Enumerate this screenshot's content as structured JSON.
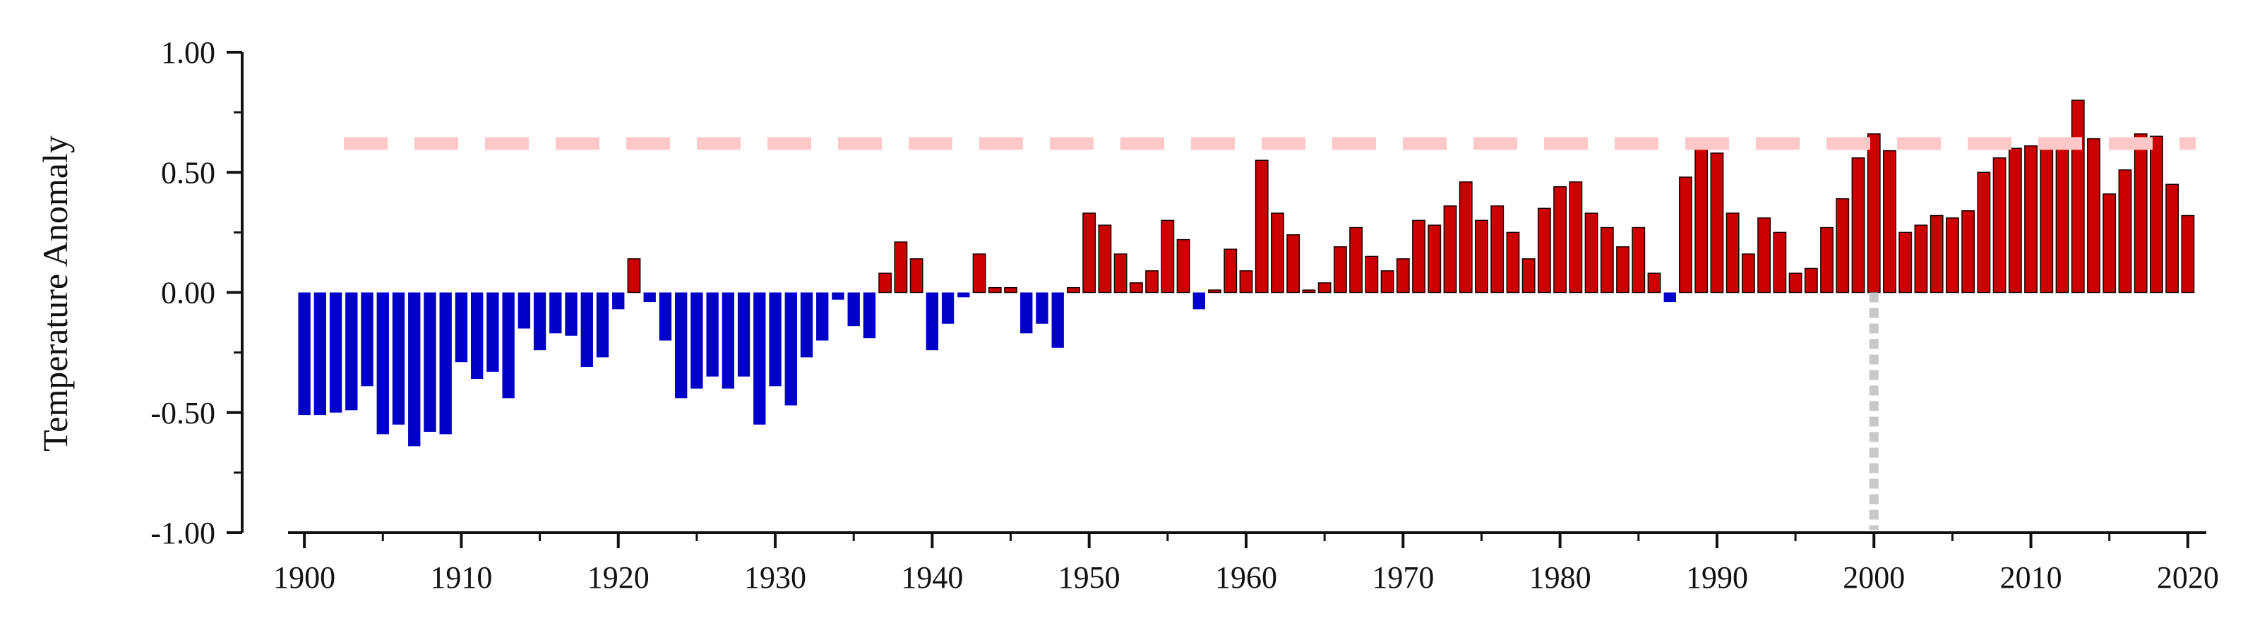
{
  "chart_data": {
    "type": "bar",
    "title": "",
    "xlabel": "",
    "ylabel": "Temperature Anomaly",
    "x_start": 1900,
    "values": [
      -0.51,
      -0.51,
      -0.5,
      -0.49,
      -0.39,
      -0.59,
      -0.55,
      -0.64,
      -0.58,
      -0.59,
      -0.29,
      -0.36,
      -0.33,
      -0.44,
      -0.15,
      -0.24,
      -0.17,
      -0.18,
      -0.31,
      -0.27,
      -0.07,
      0.14,
      -0.04,
      -0.2,
      -0.44,
      -0.4,
      -0.35,
      -0.4,
      -0.35,
      -0.55,
      -0.39,
      -0.47,
      -0.27,
      -0.2,
      -0.03,
      -0.14,
      -0.19,
      0.08,
      0.21,
      0.14,
      -0.24,
      -0.13,
      -0.02,
      0.16,
      0.02,
      0.02,
      -0.17,
      -0.13,
      -0.23,
      0.02,
      0.33,
      0.28,
      0.16,
      0.04,
      0.09,
      0.3,
      0.22,
      -0.07,
      0.01,
      0.18,
      0.09,
      0.55,
      0.33,
      0.24,
      0.01,
      0.04,
      0.19,
      0.27,
      0.15,
      0.09,
      0.14,
      0.3,
      0.28,
      0.36,
      0.46,
      0.3,
      0.36,
      0.25,
      0.14,
      0.35,
      0.44,
      0.46,
      0.33,
      0.27,
      0.19,
      0.27,
      0.08,
      -0.04,
      0.48,
      0.61,
      0.58,
      0.33,
      0.16,
      0.31,
      0.25,
      0.08,
      0.1,
      0.27,
      0.39,
      0.56,
      0.66,
      0.59,
      0.25,
      0.28,
      0.32,
      0.31,
      0.34,
      0.5,
      0.56,
      0.6,
      0.61,
      0.61,
      0.61,
      0.8,
      0.64,
      0.41,
      0.51,
      0.66,
      0.65,
      0.45,
      0.32
    ],
    "ylim": [
      -1.0,
      1.0
    ],
    "xlim": [
      1899.5,
      2020.5
    ],
    "y_ticks": [
      "1.00",
      "0.50",
      "0.00",
      "-0.50",
      "-1.00"
    ],
    "x_ticks": [
      "1900",
      "1910",
      "1920",
      "1930",
      "1940",
      "1950",
      "1960",
      "1970",
      "1980",
      "1990",
      "2000",
      "2010",
      "2020"
    ],
    "reference_line_y": 0.62,
    "reference_line_x": 2000,
    "colors": {
      "positive": "#cc0000",
      "negative": "#0000c8",
      "reference_h": "#ffc8c8",
      "reference_v": "#c8c8c8",
      "axis": "#111111"
    },
    "grid": false,
    "legend": "none"
  }
}
